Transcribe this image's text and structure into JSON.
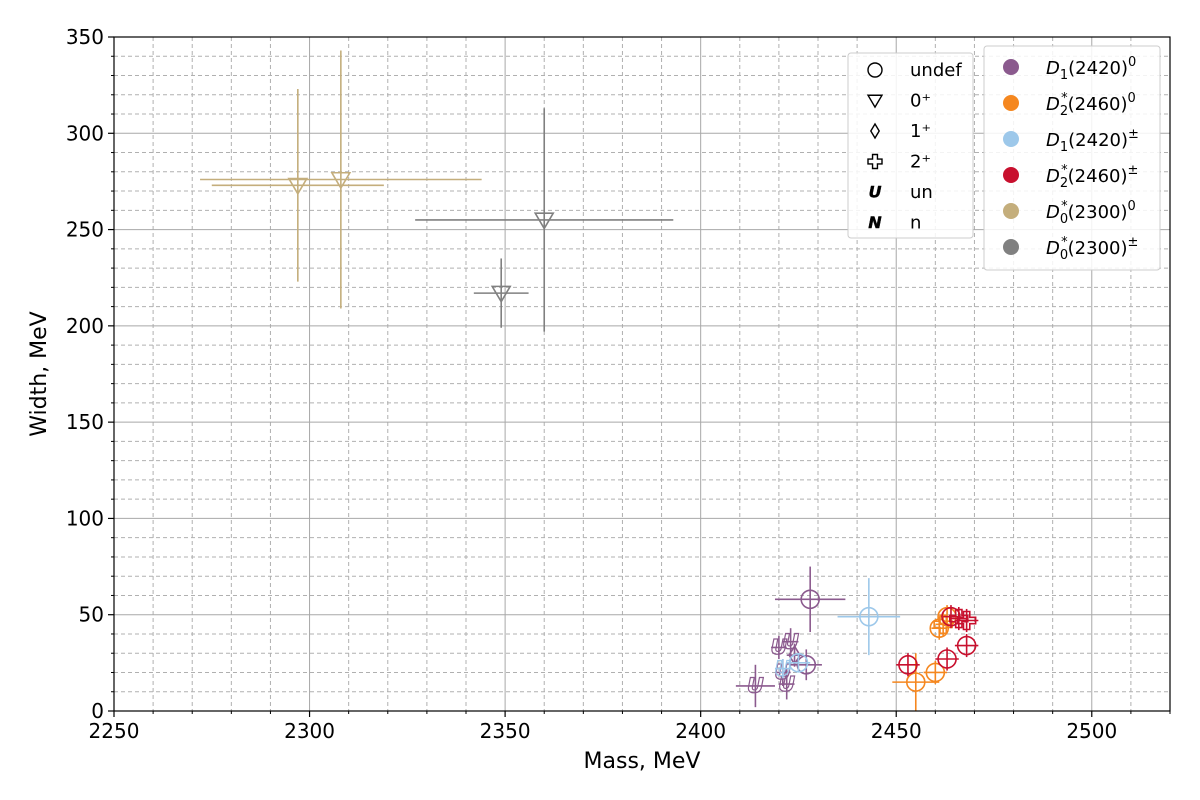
{
  "chart_data": {
    "type": "scatter",
    "xlabel": "Mass, MeV",
    "ylabel": "Width, MeV",
    "xlim": [
      2250,
      2520
    ],
    "ylim": [
      0,
      350
    ],
    "x_major_ticks": [
      2250,
      2300,
      2350,
      2400,
      2450,
      2500
    ],
    "x_tick_labels": [
      "2250",
      "2300",
      "2350",
      "2400",
      "2450",
      "2500"
    ],
    "x_minor_step": 10,
    "y_major_ticks": [
      0,
      50,
      100,
      150,
      200,
      250,
      300,
      350
    ],
    "y_tick_labels": [
      "0",
      "50",
      "100",
      "150",
      "200",
      "250",
      "300",
      "350"
    ],
    "y_minor_step": 10,
    "grid": true,
    "colors": {
      "D1_2420_0": "#8b5a8e",
      "D2s_2460_0": "#f5871f",
      "D1_2420_pm": "#9dc8ea",
      "D2s_2460_pm": "#c8102e",
      "D0s_2300_0": "#c4ae7c",
      "D0s_2300_pm": "#808080"
    },
    "marker_legend": {
      "placement": "upper-center-right",
      "items": [
        {
          "marker": "circle",
          "label": "undef"
        },
        {
          "marker": "triangle-down",
          "label": "0⁺"
        },
        {
          "marker": "diamond",
          "label": "1⁺"
        },
        {
          "marker": "plus",
          "label": "2⁺"
        },
        {
          "marker": "letter",
          "glyph": "U",
          "label": "un"
        },
        {
          "marker": "letter",
          "glyph": "N",
          "label": "n"
        }
      ]
    },
    "color_legend": {
      "placement": "top-right",
      "items": [
        {
          "series": "D1_2420_0",
          "base": "D",
          "sub": "1",
          "sup": "",
          "suffix": "(2420)",
          "suffix_sup": "0"
        },
        {
          "series": "D2s_2460_0",
          "base": "D",
          "sub": "2",
          "sup": "*",
          "suffix": "(2460)",
          "suffix_sup": "0"
        },
        {
          "series": "D1_2420_pm",
          "base": "D",
          "sub": "1",
          "sup": "",
          "suffix": "(2420)",
          "suffix_sup": "±"
        },
        {
          "series": "D2s_2460_pm",
          "base": "D",
          "sub": "2",
          "sup": "*",
          "suffix": "(2460)",
          "suffix_sup": "±"
        },
        {
          "series": "D0s_2300_0",
          "base": "D",
          "sub": "0",
          "sup": "*",
          "suffix": "(2300)",
          "suffix_sup": "0"
        },
        {
          "series": "D0s_2300_pm",
          "base": "D",
          "sub": "0",
          "sup": "*",
          "suffix": "(2300)",
          "suffix_sup": "±"
        }
      ]
    },
    "series": [
      {
        "id": "D0s_2300_0",
        "color": "#c4ae7c",
        "points": [
          {
            "x": 2297,
            "y": 273,
            "xerr": 22,
            "yerr": 50,
            "marker": "triangle-down"
          },
          {
            "x": 2308,
            "y": 276,
            "xerr": 36,
            "yerr": 67,
            "marker": "triangle-down"
          }
        ]
      },
      {
        "id": "D0s_2300_pm",
        "color": "#808080",
        "points": [
          {
            "x": 2349,
            "y": 217,
            "xerr": 7,
            "yerr": 18,
            "marker": "triangle-down"
          },
          {
            "x": 2360,
            "y": 255,
            "xerr": 33,
            "yerr": 58,
            "marker": "triangle-down"
          }
        ]
      },
      {
        "id": "D1_2420_0",
        "color": "#8b5a8e",
        "points": [
          {
            "x": 2414,
            "y": 13,
            "xerr": 5,
            "yerr": 11,
            "marker": "letter",
            "glyph": "U"
          },
          {
            "x": 2420,
            "y": 33,
            "xerr": 2,
            "yerr": 6,
            "marker": "letter",
            "glyph": "U"
          },
          {
            "x": 2421,
            "y": 20,
            "xerr": 2,
            "yerr": 7,
            "marker": "letter",
            "glyph": "U"
          },
          {
            "x": 2422,
            "y": 14,
            "xerr": 2,
            "yerr": 8,
            "marker": "letter",
            "glyph": "U"
          },
          {
            "x": 2423,
            "y": 36,
            "xerr": 2,
            "yerr": 7,
            "marker": "letter",
            "glyph": "U"
          },
          {
            "x": 2424,
            "y": 29,
            "xerr": 2,
            "yerr": 6,
            "marker": "diamond"
          },
          {
            "x": 2427,
            "y": 24,
            "xerr": 4,
            "yerr": 8,
            "marker": "circle"
          },
          {
            "x": 2428,
            "y": 58,
            "xerr": 9,
            "yerr": 17,
            "marker": "circle"
          }
        ]
      },
      {
        "id": "D1_2420_pm",
        "color": "#9dc8ea",
        "points": [
          {
            "x": 2421,
            "y": 22,
            "xerr": 2,
            "yerr": 5,
            "marker": "letter",
            "glyph": "U"
          },
          {
            "x": 2425,
            "y": 25,
            "xerr": 3,
            "yerr": 5,
            "marker": "circle"
          },
          {
            "x": 2443,
            "y": 49,
            "xerr": 8,
            "yerr": 20,
            "marker": "circle"
          }
        ]
      },
      {
        "id": "D2s_2460_0",
        "color": "#f5871f",
        "points": [
          {
            "x": 2455,
            "y": 15,
            "xerr": 6,
            "yerr": 15,
            "marker": "circle"
          },
          {
            "x": 2460,
            "y": 20,
            "xerr": 3,
            "yerr": 6,
            "marker": "circle"
          },
          {
            "x": 2461,
            "y": 43,
            "xerr": 2,
            "yerr": 6,
            "marker": "circle"
          },
          {
            "x": 2462,
            "y": 45,
            "xerr": 2,
            "yerr": 6,
            "marker": "plus"
          },
          {
            "x": 2463,
            "y": 49,
            "xerr": 2,
            "yerr": 6,
            "marker": "circle"
          }
        ]
      },
      {
        "id": "D2s_2460_pm",
        "color": "#c8102e",
        "points": [
          {
            "x": 2453,
            "y": 24,
            "xerr": 3,
            "yerr": 6,
            "marker": "circle"
          },
          {
            "x": 2463,
            "y": 27,
            "xerr": 3,
            "yerr": 6,
            "marker": "circle"
          },
          {
            "x": 2464,
            "y": 49,
            "xerr": 2,
            "yerr": 6,
            "marker": "circle"
          },
          {
            "x": 2466,
            "y": 48,
            "xerr": 2,
            "yerr": 6,
            "marker": "plus"
          },
          {
            "x": 2468,
            "y": 47,
            "xerr": 3,
            "yerr": 6,
            "marker": "plus"
          },
          {
            "x": 2468,
            "y": 34,
            "xerr": 3,
            "yerr": 6,
            "marker": "circle"
          }
        ]
      }
    ]
  }
}
